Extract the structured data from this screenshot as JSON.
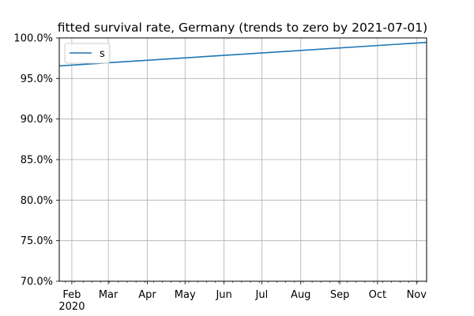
{
  "chart_data": {
    "type": "line",
    "title": "fitted survival rate, Germany (trends to zero by 2021-07-01)",
    "xlabel": "",
    "ylabel": "",
    "x_axis_kind": "date",
    "x_range": [
      "2020-01-22",
      "2020-11-09"
    ],
    "ylim": [
      0.7,
      1.0
    ],
    "y_ticks": [
      0.7,
      0.75,
      0.8,
      0.85,
      0.9,
      0.95,
      1.0
    ],
    "y_tick_labels": [
      "70.0%",
      "75.0%",
      "80.0%",
      "85.0%",
      "90.0%",
      "95.0%",
      "100.0%"
    ],
    "x_major_ticks": [
      {
        "date": "2020-02-01",
        "label": "Feb",
        "sublabel": "2020"
      },
      {
        "date": "2020-03-01",
        "label": "Mar",
        "sublabel": ""
      },
      {
        "date": "2020-04-01",
        "label": "Apr",
        "sublabel": ""
      },
      {
        "date": "2020-05-01",
        "label": "May",
        "sublabel": ""
      },
      {
        "date": "2020-06-01",
        "label": "Jun",
        "sublabel": ""
      },
      {
        "date": "2020-07-01",
        "label": "Jul",
        "sublabel": ""
      },
      {
        "date": "2020-08-01",
        "label": "Aug",
        "sublabel": ""
      },
      {
        "date": "2020-09-01",
        "label": "Sep",
        "sublabel": ""
      },
      {
        "date": "2020-10-01",
        "label": "Oct",
        "sublabel": ""
      },
      {
        "date": "2020-11-01",
        "label": "Nov",
        "sublabel": ""
      }
    ],
    "grid": true,
    "legend_placement": "top-left",
    "series": [
      {
        "name": "s",
        "color": "#1f77b4",
        "x": [
          "2020-01-22",
          "2020-11-09"
        ],
        "y": [
          0.9655,
          0.9945
        ]
      }
    ]
  }
}
